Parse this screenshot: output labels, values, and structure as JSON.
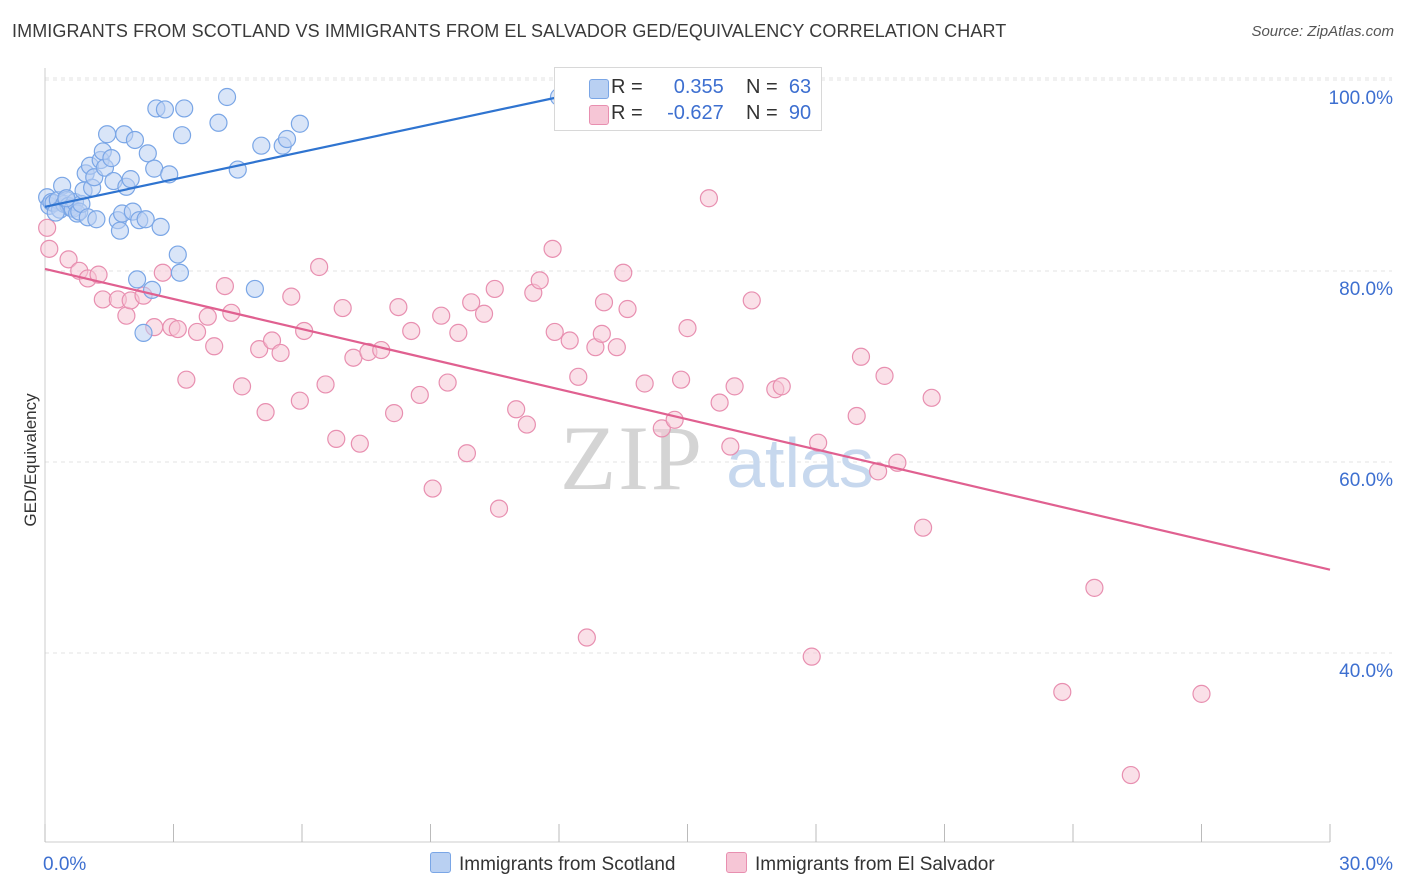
{
  "header": {
    "title": "IMMIGRANTS FROM SCOTLAND VS IMMIGRANTS FROM EL SALVADOR GED/EQUIVALENCY CORRELATION CHART",
    "source": "Source: ZipAtlas.com"
  },
  "watermark": {
    "zip": "ZIP",
    "atlas": "atlas"
  },
  "legend": {
    "rows": [
      {
        "r_label": "R =",
        "r_value": "0.355",
        "n_label": "N =",
        "n_value": "63"
      },
      {
        "r_label": "R =",
        "r_value": "-0.627",
        "n_label": "N =",
        "n_value": "90"
      }
    ]
  },
  "chart_data": {
    "type": "scatter",
    "title": "IMMIGRANTS FROM SCOTLAND VS IMMIGRANTS FROM EL SALVADOR GED/EQUIVALENCY CORRELATION CHART",
    "xlabel": "",
    "ylabel": "GED/Equivalency",
    "xlim": [
      0,
      30
    ],
    "ylim": [
      20,
      102
    ],
    "x_tick_labels": [
      "0.0%",
      "30.0%"
    ],
    "y_ticks": [
      40,
      60,
      80,
      100
    ],
    "y_tick_labels": [
      "40.0%",
      "60.0%",
      "80.0%",
      "100.0%"
    ],
    "grid": true,
    "legend_position": "top-center",
    "series": [
      {
        "name": "Immigrants from Scotland",
        "color": "#7aa6e6",
        "fill": "#b9d0f2",
        "line_color": "#2f74d0",
        "trend": {
          "x": [
            0.0,
            12.0
          ],
          "y": [
            88.5,
            100.0
          ]
        },
        "points": [
          [
            0.05,
            89.5
          ],
          [
            0.1,
            88.6
          ],
          [
            0.15,
            89.0
          ],
          [
            0.2,
            88.9
          ],
          [
            0.3,
            89.2
          ],
          [
            0.35,
            88.2
          ],
          [
            0.4,
            90.7
          ],
          [
            0.45,
            88.8
          ],
          [
            0.5,
            89.2
          ],
          [
            0.55,
            88.6
          ],
          [
            0.6,
            88.4
          ],
          [
            0.65,
            88.3
          ],
          [
            0.7,
            89.0
          ],
          [
            0.75,
            87.8
          ],
          [
            0.8,
            88.0
          ],
          [
            0.85,
            88.8
          ],
          [
            0.9,
            90.2
          ],
          [
            0.95,
            92.0
          ],
          [
            1.0,
            87.4
          ],
          [
            1.05,
            92.8
          ],
          [
            1.1,
            90.5
          ],
          [
            1.15,
            91.6
          ],
          [
            1.2,
            87.2
          ],
          [
            1.3,
            93.4
          ],
          [
            1.35,
            94.3
          ],
          [
            1.4,
            92.6
          ],
          [
            1.45,
            96.1
          ],
          [
            1.55,
            93.6
          ],
          [
            1.6,
            91.2
          ],
          [
            1.7,
            87.1
          ],
          [
            1.75,
            86.0
          ],
          [
            1.8,
            87.8
          ],
          [
            1.85,
            96.1
          ],
          [
            1.9,
            90.6
          ],
          [
            2.0,
            91.4
          ],
          [
            2.05,
            88.0
          ],
          [
            2.1,
            95.5
          ],
          [
            2.15,
            80.9
          ],
          [
            2.2,
            87.1
          ],
          [
            2.3,
            75.3
          ],
          [
            2.35,
            87.2
          ],
          [
            2.4,
            94.1
          ],
          [
            2.5,
            79.8
          ],
          [
            2.55,
            92.5
          ],
          [
            2.6,
            98.8
          ],
          [
            2.7,
            86.4
          ],
          [
            2.8,
            98.7
          ],
          [
            2.9,
            91.9
          ],
          [
            3.1,
            83.5
          ],
          [
            3.15,
            81.6
          ],
          [
            3.2,
            96.0
          ],
          [
            3.25,
            98.8
          ],
          [
            4.05,
            97.3
          ],
          [
            4.25,
            100.0
          ],
          [
            4.5,
            92.4
          ],
          [
            4.9,
            79.9
          ],
          [
            5.05,
            94.9
          ],
          [
            5.55,
            94.9
          ],
          [
            5.65,
            95.6
          ],
          [
            5.95,
            97.2
          ],
          [
            12.0,
            100.0
          ],
          [
            0.25,
            87.9
          ],
          [
            0.5,
            89.4
          ]
        ]
      },
      {
        "name": "Immigrants from El Salvador",
        "color": "#e88fb0",
        "fill": "#f6c6d6",
        "line_color": "#e06090",
        "trend": {
          "x": [
            0.0,
            30.0
          ],
          "y": [
            82.0,
            50.5
          ]
        },
        "points": [
          [
            0.05,
            86.3
          ],
          [
            0.1,
            84.1
          ],
          [
            0.55,
            83.0
          ],
          [
            0.8,
            81.8
          ],
          [
            1.0,
            81.0
          ],
          [
            1.25,
            81.4
          ],
          [
            1.35,
            78.8
          ],
          [
            1.7,
            78.8
          ],
          [
            1.9,
            77.1
          ],
          [
            2.0,
            78.7
          ],
          [
            2.3,
            79.2
          ],
          [
            2.55,
            75.9
          ],
          [
            2.75,
            81.6
          ],
          [
            2.95,
            75.9
          ],
          [
            3.1,
            75.7
          ],
          [
            3.3,
            70.4
          ],
          [
            3.55,
            75.4
          ],
          [
            3.8,
            77.0
          ],
          [
            3.95,
            73.9
          ],
          [
            4.2,
            80.2
          ],
          [
            4.35,
            77.4
          ],
          [
            4.6,
            69.7
          ],
          [
            5.0,
            73.6
          ],
          [
            5.15,
            67.0
          ],
          [
            5.3,
            74.5
          ],
          [
            5.5,
            73.2
          ],
          [
            5.75,
            79.1
          ],
          [
            5.95,
            68.2
          ],
          [
            6.05,
            75.5
          ],
          [
            6.4,
            82.2
          ],
          [
            6.55,
            69.9
          ],
          [
            6.8,
            64.2
          ],
          [
            6.95,
            77.9
          ],
          [
            7.2,
            72.7
          ],
          [
            7.35,
            63.7
          ],
          [
            7.55,
            73.3
          ],
          [
            7.85,
            73.5
          ],
          [
            8.15,
            66.9
          ],
          [
            8.25,
            78.0
          ],
          [
            8.55,
            75.5
          ],
          [
            8.75,
            68.8
          ],
          [
            9.05,
            59.0
          ],
          [
            9.25,
            77.1
          ],
          [
            9.4,
            70.1
          ],
          [
            9.65,
            75.3
          ],
          [
            9.85,
            62.7
          ],
          [
            9.95,
            78.5
          ],
          [
            10.25,
            77.3
          ],
          [
            10.5,
            79.9
          ],
          [
            10.6,
            56.9
          ],
          [
            11.0,
            67.3
          ],
          [
            11.25,
            65.7
          ],
          [
            11.4,
            79.5
          ],
          [
            11.55,
            80.8
          ],
          [
            11.85,
            84.1
          ],
          [
            11.9,
            75.4
          ],
          [
            12.25,
            74.5
          ],
          [
            12.45,
            70.7
          ],
          [
            12.65,
            43.4
          ],
          [
            12.85,
            73.8
          ],
          [
            13.0,
            75.2
          ],
          [
            13.05,
            78.5
          ],
          [
            13.35,
            73.8
          ],
          [
            13.5,
            81.6
          ],
          [
            13.6,
            77.8
          ],
          [
            14.0,
            70.0
          ],
          [
            14.4,
            65.3
          ],
          [
            14.7,
            66.2
          ],
          [
            14.85,
            70.4
          ],
          [
            15.0,
            75.8
          ],
          [
            15.5,
            89.4
          ],
          [
            15.75,
            68.0
          ],
          [
            16.0,
            63.4
          ],
          [
            16.1,
            69.7
          ],
          [
            16.5,
            78.7
          ],
          [
            17.05,
            69.4
          ],
          [
            17.2,
            69.7
          ],
          [
            17.9,
            41.4
          ],
          [
            18.05,
            63.8
          ],
          [
            18.95,
            66.6
          ],
          [
            19.05,
            72.8
          ],
          [
            19.45,
            60.8
          ],
          [
            19.6,
            70.8
          ],
          [
            19.9,
            61.7
          ],
          [
            20.5,
            54.9
          ],
          [
            20.7,
            68.5
          ],
          [
            23.75,
            37.7
          ],
          [
            24.5,
            48.6
          ],
          [
            25.35,
            29.0
          ],
          [
            27.0,
            37.5
          ]
        ]
      }
    ]
  }
}
